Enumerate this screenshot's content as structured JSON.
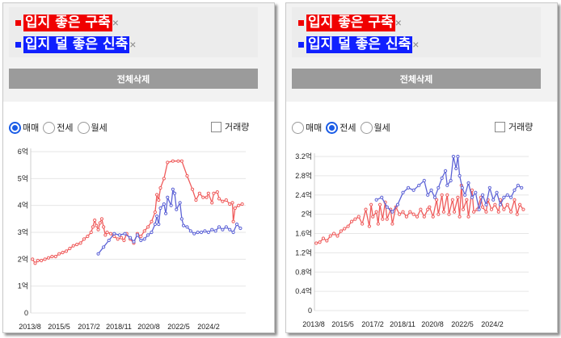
{
  "colors": {
    "red": "#f03030",
    "blue": "#1a2ef0",
    "accent": "#1a5ce6",
    "red_line": "#ef5b5b",
    "blue_line": "#5d63d6"
  },
  "panels": [
    {
      "tags": [
        {
          "label": "입지 좋은 구축",
          "color": "#f00000",
          "remove": "×"
        },
        {
          "label": "입지 덜 좋은 신축",
          "color": "#1020ff",
          "remove": "×"
        }
      ],
      "delete_all": "전체삭제",
      "radios": [
        {
          "label": "매매",
          "selected": true
        },
        {
          "label": "전세",
          "selected": false
        },
        {
          "label": "월세",
          "selected": false
        }
      ],
      "checkbox_label": "거래량",
      "checkbox_checked": false
    },
    {
      "tags": [
        {
          "label": "입지 좋은 구축",
          "color": "#f00000",
          "remove": "×"
        },
        {
          "label": "입지 덜 좋은 신축",
          "color": "#1020ff",
          "remove": "×"
        }
      ],
      "delete_all": "전체삭제",
      "radios": [
        {
          "label": "매매",
          "selected": false
        },
        {
          "label": "전세",
          "selected": true
        },
        {
          "label": "월세",
          "selected": false
        }
      ],
      "checkbox_label": "거래량",
      "checkbox_checked": false
    }
  ],
  "chart_data": [
    {
      "type": "line",
      "x_tick_labels": [
        "2013/8",
        "2015/5",
        "2017/2",
        "2018/11",
        "2020/8",
        "2022/5",
        "2024/2"
      ],
      "y_tick_labels": [
        "0",
        "1억",
        "2억",
        "3억",
        "4억",
        "5억",
        "6억"
      ],
      "ylim": [
        0,
        6
      ],
      "grid": true,
      "series": [
        {
          "name": "입지 좋은 구축",
          "color": "#ef5b5b",
          "points": [
            [
              2013.6,
              2.0
            ],
            [
              2013.75,
              1.85
            ],
            [
              2013.9,
              1.95
            ],
            [
              2014.1,
              1.95
            ],
            [
              2014.3,
              2.0
            ],
            [
              2014.5,
              2.05
            ],
            [
              2014.7,
              2.1
            ],
            [
              2014.9,
              2.1
            ],
            [
              2015.1,
              2.2
            ],
            [
              2015.3,
              2.25
            ],
            [
              2015.5,
              2.3
            ],
            [
              2015.7,
              2.4
            ],
            [
              2015.9,
              2.5
            ],
            [
              2016.1,
              2.55
            ],
            [
              2016.3,
              2.6
            ],
            [
              2016.5,
              2.75
            ],
            [
              2016.7,
              2.85
            ],
            [
              2016.9,
              3.0
            ],
            [
              2017.0,
              3.2
            ],
            [
              2017.1,
              3.45
            ],
            [
              2017.2,
              3.25
            ],
            [
              2017.3,
              3.1
            ],
            [
              2017.4,
              3.35
            ],
            [
              2017.5,
              3.5
            ],
            [
              2017.6,
              3.2
            ],
            [
              2017.7,
              2.9
            ],
            [
              2017.8,
              3.0
            ],
            [
              2018.0,
              2.95
            ],
            [
              2018.2,
              2.85
            ],
            [
              2018.4,
              2.75
            ],
            [
              2018.6,
              2.8
            ],
            [
              2018.75,
              2.7
            ],
            [
              2018.9,
              2.95
            ],
            [
              2019.1,
              2.75
            ],
            [
              2019.3,
              2.6
            ],
            [
              2019.5,
              2.95
            ],
            [
              2019.7,
              2.85
            ],
            [
              2019.9,
              3.05
            ],
            [
              2020.1,
              3.2
            ],
            [
              2020.3,
              3.4
            ],
            [
              2020.5,
              3.75
            ],
            [
              2020.6,
              4.4
            ],
            [
              2020.7,
              4.2
            ],
            [
              2020.8,
              4.65
            ],
            [
              2021.0,
              5.0
            ],
            [
              2021.2,
              5.6
            ],
            [
              2021.5,
              5.65
            ],
            [
              2021.8,
              5.65
            ],
            [
              2022.0,
              5.65
            ],
            [
              2022.3,
              5.1
            ],
            [
              2022.6,
              4.6
            ],
            [
              2022.8,
              4.2
            ],
            [
              2023.0,
              4.45
            ],
            [
              2023.2,
              4.3
            ],
            [
              2023.4,
              4.3
            ],
            [
              2023.5,
              4.45
            ],
            [
              2023.7,
              4.1
            ],
            [
              2023.8,
              4.45
            ],
            [
              2024.0,
              4.5
            ],
            [
              2024.1,
              4.25
            ],
            [
              2024.3,
              4.15
            ],
            [
              2024.5,
              4.2
            ],
            [
              2024.7,
              4.05
            ],
            [
              2024.85,
              4.1
            ],
            [
              2024.9,
              3.4
            ],
            [
              2025.0,
              3.9
            ],
            [
              2025.2,
              4.0
            ],
            [
              2025.4,
              4.05
            ]
          ]
        },
        {
          "name": "입지 덜 좋은 신축",
          "color": "#5d63d6",
          "points": [
            [
              2017.3,
              2.2
            ],
            [
              2017.6,
              2.45
            ],
            [
              2017.9,
              2.7
            ],
            [
              2018.2,
              2.95
            ],
            [
              2018.5,
              2.9
            ],
            [
              2018.8,
              2.95
            ],
            [
              2019.1,
              2.8
            ],
            [
              2019.3,
              2.65
            ],
            [
              2019.5,
              2.9
            ],
            [
              2019.7,
              2.7
            ],
            [
              2019.9,
              2.75
            ],
            [
              2020.1,
              2.9
            ],
            [
              2020.3,
              3.0
            ],
            [
              2020.5,
              3.3
            ],
            [
              2020.6,
              3.6
            ],
            [
              2020.7,
              3.3
            ],
            [
              2020.8,
              3.9
            ],
            [
              2021.0,
              4.05
            ],
            [
              2021.1,
              3.7
            ],
            [
              2021.2,
              4.3
            ],
            [
              2021.4,
              4.0
            ],
            [
              2021.5,
              4.6
            ],
            [
              2021.6,
              4.45
            ],
            [
              2021.7,
              3.85
            ],
            [
              2021.9,
              4.1
            ],
            [
              2022.0,
              3.5
            ],
            [
              2022.1,
              3.25
            ],
            [
              2022.3,
              3.2
            ],
            [
              2022.5,
              3.05
            ],
            [
              2022.7,
              2.95
            ],
            [
              2022.9,
              3.0
            ],
            [
              2023.1,
              3.0
            ],
            [
              2023.3,
              3.05
            ],
            [
              2023.5,
              3.0
            ],
            [
              2023.7,
              3.1
            ],
            [
              2023.9,
              3.05
            ],
            [
              2024.1,
              3.2
            ],
            [
              2024.3,
              3.1
            ],
            [
              2024.5,
              3.2
            ],
            [
              2024.7,
              3.1
            ],
            [
              2024.9,
              3.0
            ],
            [
              2025.1,
              3.3
            ],
            [
              2025.3,
              3.15
            ]
          ]
        }
      ]
    },
    {
      "type": "line",
      "x_tick_labels": [
        "2013/8",
        "2015/5",
        "2017/2",
        "2018/11",
        "2020/8",
        "2022/5",
        "2024/2"
      ],
      "y_tick_labels": [
        "0",
        "0.4억",
        "0.8억",
        "1.2억",
        "1.6억",
        "2억",
        "2.4억",
        "2.8억",
        "3.2억"
      ],
      "ylim": [
        0,
        3.2
      ],
      "grid": true,
      "series": [
        {
          "name": "입지 좋은 구축",
          "color": "#ef5b5b",
          "points": [
            [
              2013.6,
              1.4
            ],
            [
              2013.8,
              1.42
            ],
            [
              2014.0,
              1.5
            ],
            [
              2014.2,
              1.45
            ],
            [
              2014.4,
              1.55
            ],
            [
              2014.6,
              1.6
            ],
            [
              2014.8,
              1.55
            ],
            [
              2015.0,
              1.65
            ],
            [
              2015.2,
              1.7
            ],
            [
              2015.4,
              1.75
            ],
            [
              2015.6,
              1.85
            ],
            [
              2015.8,
              1.9
            ],
            [
              2016.0,
              1.95
            ],
            [
              2016.2,
              1.8
            ],
            [
              2016.4,
              2.1
            ],
            [
              2016.6,
              1.75
            ],
            [
              2016.7,
              2.2
            ],
            [
              2016.8,
              1.95
            ],
            [
              2017.0,
              2.05
            ],
            [
              2017.1,
              1.8
            ],
            [
              2017.2,
              2.2
            ],
            [
              2017.35,
              1.9
            ],
            [
              2017.5,
              2.25
            ],
            [
              2017.6,
              1.9
            ],
            [
              2017.8,
              2.1
            ],
            [
              2017.9,
              1.8
            ],
            [
              2018.1,
              2.15
            ],
            [
              2018.3,
              2.0
            ],
            [
              2018.5,
              2.05
            ],
            [
              2018.7,
              1.95
            ],
            [
              2018.9,
              2.05
            ],
            [
              2019.1,
              2.0
            ],
            [
              2019.3,
              1.95
            ],
            [
              2019.5,
              2.1
            ],
            [
              2019.7,
              1.95
            ],
            [
              2019.9,
              2.1
            ],
            [
              2020.0,
              2.15
            ],
            [
              2020.2,
              1.95
            ],
            [
              2020.4,
              2.3
            ],
            [
              2020.5,
              2.0
            ],
            [
              2020.7,
              2.4
            ],
            [
              2020.8,
              2.05
            ],
            [
              2021.0,
              2.4
            ],
            [
              2021.1,
              2.0
            ],
            [
              2021.3,
              2.3
            ],
            [
              2021.4,
              2.05
            ],
            [
              2021.6,
              2.35
            ],
            [
              2021.7,
              1.95
            ],
            [
              2021.8,
              2.6
            ],
            [
              2021.9,
              2.1
            ],
            [
              2022.1,
              2.3
            ],
            [
              2022.2,
              1.95
            ],
            [
              2022.4,
              2.5
            ],
            [
              2022.5,
              2.05
            ],
            [
              2022.7,
              2.1
            ],
            [
              2022.9,
              2.35
            ],
            [
              2023.0,
              2.15
            ],
            [
              2023.2,
              2.05
            ],
            [
              2023.3,
              2.3
            ],
            [
              2023.5,
              2.1
            ],
            [
              2023.7,
              2.2
            ],
            [
              2023.9,
              2.05
            ],
            [
              2024.0,
              2.3
            ],
            [
              2024.2,
              2.1
            ],
            [
              2024.4,
              2.2
            ],
            [
              2024.6,
              2.05
            ],
            [
              2024.8,
              2.3
            ],
            [
              2024.95,
              2.0
            ],
            [
              2025.1,
              2.2
            ],
            [
              2025.3,
              2.1
            ]
          ]
        },
        {
          "name": "입지 덜 좋은 신축",
          "color": "#5d63d6",
          "points": [
            [
              2017.0,
              2.3
            ],
            [
              2017.3,
              2.35
            ],
            [
              2017.6,
              2.15
            ],
            [
              2017.9,
              2.05
            ],
            [
              2018.2,
              2.2
            ],
            [
              2018.5,
              2.45
            ],
            [
              2018.8,
              2.55
            ],
            [
              2019.1,
              2.5
            ],
            [
              2019.4,
              2.6
            ],
            [
              2019.7,
              2.7
            ],
            [
              2019.9,
              2.4
            ],
            [
              2020.1,
              2.5
            ],
            [
              2020.3,
              2.35
            ],
            [
              2020.5,
              2.55
            ],
            [
              2020.7,
              2.75
            ],
            [
              2020.9,
              2.9
            ],
            [
              2021.0,
              2.6
            ],
            [
              2021.2,
              2.7
            ],
            [
              2021.35,
              3.2
            ],
            [
              2021.5,
              2.95
            ],
            [
              2021.6,
              3.2
            ],
            [
              2021.7,
              2.8
            ],
            [
              2021.85,
              2.55
            ],
            [
              2022.0,
              2.4
            ],
            [
              2022.2,
              2.65
            ],
            [
              2022.4,
              2.35
            ],
            [
              2022.6,
              2.45
            ],
            [
              2022.8,
              2.1
            ],
            [
              2023.0,
              2.4
            ],
            [
              2023.2,
              2.2
            ],
            [
              2023.4,
              2.55
            ],
            [
              2023.6,
              2.3
            ],
            [
              2023.8,
              2.45
            ],
            [
              2024.0,
              2.2
            ],
            [
              2024.2,
              2.35
            ],
            [
              2024.4,
              2.4
            ],
            [
              2024.6,
              2.35
            ],
            [
              2024.8,
              2.5
            ],
            [
              2025.0,
              2.6
            ],
            [
              2025.2,
              2.55
            ]
          ]
        }
      ]
    }
  ]
}
